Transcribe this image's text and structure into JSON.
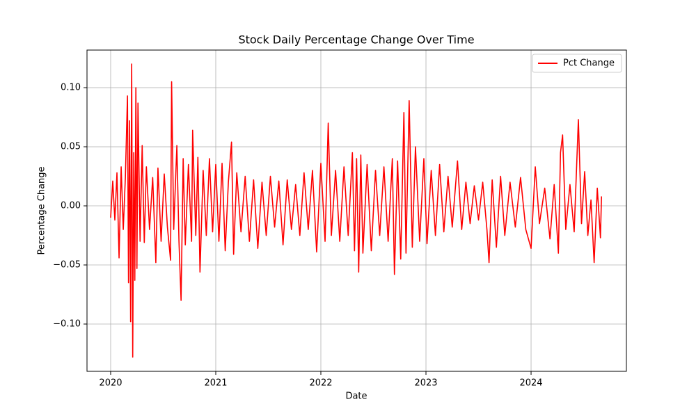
{
  "chart_data": {
    "type": "line",
    "title": "Stock Daily Percentage Change Over Time",
    "x_label": "Date",
    "y_label": "Percentage Change",
    "x": [
      2020.0,
      2020.02,
      2020.04,
      2020.06,
      2020.08,
      2020.1,
      2020.12,
      2020.14,
      2020.16,
      2020.17,
      2020.18,
      2020.19,
      2020.2,
      2020.21,
      2020.22,
      2020.23,
      2020.24,
      2020.25,
      2020.26,
      2020.28,
      2020.3,
      2020.32,
      2020.34,
      2020.37,
      2020.4,
      2020.43,
      2020.45,
      2020.48,
      2020.51,
      2020.54,
      2020.57,
      2020.58,
      2020.6,
      2020.63,
      2020.65,
      2020.67,
      2020.69,
      2020.71,
      2020.74,
      2020.77,
      2020.78,
      2020.81,
      2020.83,
      2020.85,
      2020.88,
      2020.91,
      2020.94,
      2020.97,
      2021.0,
      2021.03,
      2021.06,
      2021.09,
      2021.12,
      2021.15,
      2021.17,
      2021.2,
      2021.24,
      2021.28,
      2021.32,
      2021.36,
      2021.4,
      2021.44,
      2021.48,
      2021.52,
      2021.56,
      2021.6,
      2021.64,
      2021.68,
      2021.72,
      2021.76,
      2021.8,
      2021.84,
      2021.88,
      2021.92,
      2021.96,
      2022.0,
      2022.04,
      2022.07,
      2022.1,
      2022.14,
      2022.18,
      2022.22,
      2022.26,
      2022.3,
      2022.32,
      2022.34,
      2022.36,
      2022.38,
      2022.4,
      2022.44,
      2022.48,
      2022.52,
      2022.56,
      2022.6,
      2022.64,
      2022.68,
      2022.7,
      2022.73,
      2022.76,
      2022.79,
      2022.81,
      2022.84,
      2022.87,
      2022.9,
      2022.94,
      2022.98,
      2023.01,
      2023.05,
      2023.09,
      2023.13,
      2023.17,
      2023.21,
      2023.25,
      2023.3,
      2023.34,
      2023.38,
      2023.42,
      2023.46,
      2023.5,
      2023.54,
      2023.58,
      2023.6,
      2023.63,
      2023.67,
      2023.71,
      2023.75,
      2023.8,
      2023.85,
      2023.9,
      2023.95,
      2024.0,
      2024.04,
      2024.08,
      2024.13,
      2024.18,
      2024.22,
      2024.26,
      2024.28,
      2024.3,
      2024.33,
      2024.37,
      2024.41,
      2024.45,
      2024.48,
      2024.51,
      2024.54,
      2024.57,
      2024.6,
      2024.63,
      2024.66,
      2024.67
    ],
    "series": [
      {
        "name": "Pct Change",
        "color": "#ff0000",
        "values": [
          -0.01,
          0.021,
          -0.012,
          0.028,
          -0.044,
          0.033,
          -0.02,
          0.024,
          0.093,
          -0.065,
          0.072,
          -0.098,
          0.12,
          -0.128,
          0.045,
          -0.063,
          0.1,
          -0.053,
          0.087,
          -0.03,
          0.051,
          -0.031,
          0.033,
          -0.02,
          0.024,
          -0.048,
          0.032,
          -0.03,
          0.027,
          -0.018,
          -0.046,
          0.105,
          -0.02,
          0.051,
          -0.03,
          -0.08,
          0.04,
          -0.033,
          0.035,
          -0.03,
          0.064,
          -0.025,
          0.041,
          -0.056,
          0.03,
          -0.025,
          0.04,
          -0.022,
          0.035,
          -0.03,
          0.036,
          -0.038,
          0.02,
          0.054,
          -0.041,
          0.028,
          -0.022,
          0.025,
          -0.03,
          0.022,
          -0.036,
          0.02,
          -0.025,
          0.025,
          -0.018,
          0.021,
          -0.033,
          0.022,
          -0.02,
          0.018,
          -0.025,
          0.028,
          -0.02,
          0.03,
          -0.039,
          0.036,
          -0.03,
          0.07,
          -0.025,
          0.03,
          -0.03,
          0.033,
          -0.025,
          0.045,
          -0.038,
          0.04,
          -0.056,
          0.043,
          -0.04,
          0.035,
          -0.038,
          0.03,
          -0.025,
          0.033,
          -0.03,
          0.04,
          -0.058,
          0.038,
          -0.045,
          0.079,
          -0.04,
          0.089,
          -0.035,
          0.05,
          -0.03,
          0.04,
          -0.032,
          0.03,
          -0.025,
          0.035,
          -0.022,
          0.025,
          -0.018,
          0.038,
          -0.02,
          0.02,
          -0.015,
          0.017,
          -0.012,
          0.02,
          -0.02,
          -0.048,
          0.022,
          -0.035,
          0.025,
          -0.025,
          0.02,
          -0.018,
          0.024,
          -0.02,
          -0.036,
          0.033,
          -0.015,
          0.015,
          -0.028,
          0.018,
          -0.04,
          0.045,
          0.06,
          -0.02,
          0.018,
          -0.022,
          0.073,
          -0.015,
          0.029,
          -0.025,
          0.005,
          -0.048,
          0.015,
          -0.027,
          0.008
        ]
      }
    ],
    "xlim": [
      2019.775,
      2024.907
    ],
    "xticks": [
      2020,
      2021,
      2022,
      2023,
      2024
    ],
    "ylim": [
      -0.14,
      0.1318
    ],
    "yticks": [
      {
        "value": -0.1,
        "label": "−0.10"
      },
      {
        "value": -0.05,
        "label": "−0.05"
      },
      {
        "value": 0,
        "label": "0.00"
      },
      {
        "value": 0.05,
        "label": "0.05"
      },
      {
        "value": 0.1,
        "label": "0.10"
      }
    ],
    "grid": true,
    "legend": "upper-right"
  }
}
